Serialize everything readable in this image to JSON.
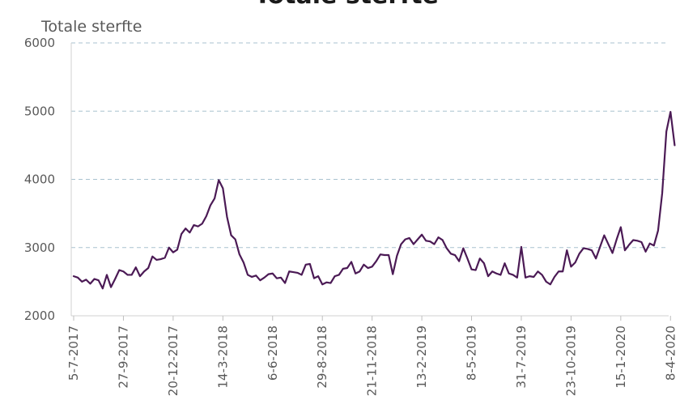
{
  "chart_data": {
    "type": "line",
    "title": "Totale sterfte",
    "ylabel": "Totale sterfte",
    "ylim": [
      2000,
      6000
    ],
    "yticks": [
      2000,
      3000,
      4000,
      5000,
      6000
    ],
    "grid": "horizontal dashed",
    "x_tick_labels": [
      "5-7-2017",
      "27-9-2017",
      "20-12-2017",
      "14-3-2018",
      "6-6-2018",
      "29-8-2018",
      "21-11-2018",
      "13-2-2019",
      "8-5-2019",
      "31-7-2019",
      "23-10-2019",
      "15-1-2020",
      "8-4-2020"
    ],
    "series": [
      {
        "color": "#4b1a55",
        "x_start": "2017-07-05",
        "x_step_days": 7,
        "values": [
          2580,
          2560,
          2500,
          2530,
          2470,
          2540,
          2520,
          2400,
          2600,
          2420,
          2540,
          2670,
          2650,
          2600,
          2600,
          2710,
          2580,
          2650,
          2700,
          2870,
          2820,
          2830,
          2850,
          3000,
          2930,
          2970,
          3200,
          3280,
          3220,
          3330,
          3310,
          3350,
          3460,
          3620,
          3720,
          3990,
          3870,
          3450,
          3180,
          3120,
          2900,
          2780,
          2600,
          2570,
          2590,
          2520,
          2560,
          2610,
          2620,
          2550,
          2560,
          2480,
          2650,
          2640,
          2630,
          2600,
          2750,
          2760,
          2550,
          2580,
          2460,
          2490,
          2480,
          2580,
          2600,
          2690,
          2700,
          2790,
          2620,
          2650,
          2750,
          2700,
          2720,
          2800,
          2900,
          2890,
          2890,
          2610,
          2880,
          3050,
          3120,
          3140,
          3050,
          3120,
          3190,
          3100,
          3090,
          3050,
          3150,
          3110,
          2990,
          2910,
          2890,
          2800,
          2990,
          2840,
          2680,
          2670,
          2840,
          2770,
          2580,
          2650,
          2620,
          2600,
          2770,
          2620,
          2600,
          2560,
          3010,
          2560,
          2580,
          2570,
          2650,
          2600,
          2500,
          2460,
          2570,
          2650,
          2650,
          2960,
          2720,
          2780,
          2910,
          2990,
          2980,
          2960,
          2840,
          3010,
          3180,
          3050,
          2920,
          3120,
          3300,
          2960,
          3040,
          3110,
          3100,
          3080,
          2940,
          3060,
          3030,
          3250,
          3800,
          4700,
          4990,
          4500
        ]
      }
    ]
  }
}
